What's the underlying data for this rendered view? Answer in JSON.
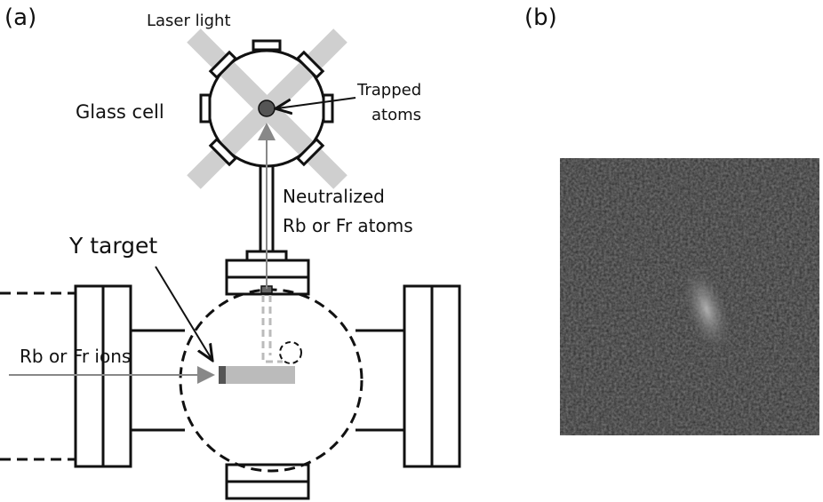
{
  "panels": {
    "a": {
      "label": "(a)",
      "laser_light": "Laser light",
      "glass_cell": "Glass cell",
      "trapped_atoms": [
        "Trapped",
        "atoms"
      ],
      "neutralized": [
        "Neutralized",
        "Rb or Fr atoms"
      ],
      "y_target": "Y target",
      "ions": "Rb or Fr ions"
    },
    "b": {
      "label": "(b)"
    }
  }
}
